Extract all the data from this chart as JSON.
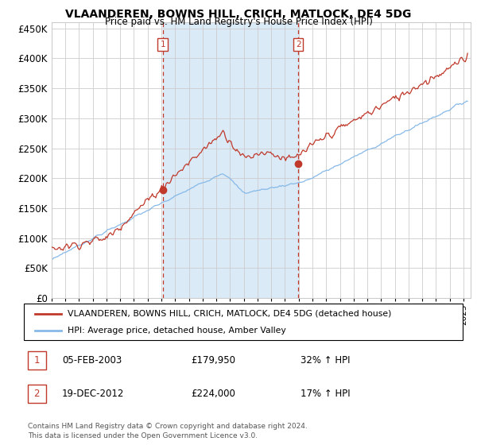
{
  "title": "VLAANDEREN, BOWNS HILL, CRICH, MATLOCK, DE4 5DG",
  "subtitle": "Price paid vs. HM Land Registry's House Price Index (HPI)",
  "xlim_start": 1995.0,
  "xlim_end": 2025.5,
  "ylim": [
    0,
    460000
  ],
  "yticks": [
    0,
    50000,
    100000,
    150000,
    200000,
    250000,
    300000,
    350000,
    400000,
    450000
  ],
  "background_color": "#ffffff",
  "plot_bg_color": "#ffffff",
  "shade_color": "#daeaf7",
  "grid_color": "#cccccc",
  "hpi_line_color": "#87b9e8",
  "price_line_color": "#c0392b",
  "sale1_x": 2003.1,
  "sale1_y": 179950,
  "sale2_x": 2012.97,
  "sale2_y": 224000,
  "legend_line1": "VLAANDEREN, BOWNS HILL, CRICH, MATLOCK, DE4 5DG (detached house)",
  "legend_line2": "HPI: Average price, detached house, Amber Valley",
  "note1_date": "05-FEB-2003",
  "note1_price": "£179,950",
  "note1_hpi": "32% ↑ HPI",
  "note2_date": "19-DEC-2012",
  "note2_price": "£224,000",
  "note2_hpi": "17% ↑ HPI",
  "footer": "Contains HM Land Registry data © Crown copyright and database right 2024.\nThis data is licensed under the Open Government Licence v3.0."
}
